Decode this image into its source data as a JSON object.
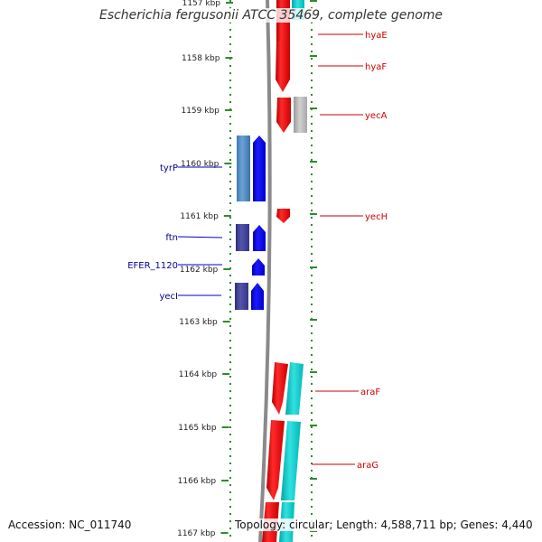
{
  "title": "Escherichia fergusonii ATCC 35469, complete genome",
  "accession": "Accession: NC_011740",
  "topology": "Topology: circular; Length: 4,588,711 bp; Genes: 4,440",
  "ticks": [
    "1157 kbp",
    "1158 kbp",
    "1159 kbp",
    "1160 kbp",
    "1161 kbp",
    "1162 kbp",
    "1163 kbp",
    "1164 kbp",
    "1165 kbp",
    "1166 kbp",
    "1167 kbp"
  ],
  "genes_right": [
    {
      "label": "hyaE",
      "color": "#cc0000"
    },
    {
      "label": "hyaF",
      "color": "#cc0000"
    },
    {
      "label": "yecA",
      "color": "#cc0000"
    },
    {
      "label": "yecH",
      "color": "#cc0000"
    },
    {
      "label": "araF",
      "color": "#cc0000"
    },
    {
      "label": "araG",
      "color": "#cc0000"
    }
  ],
  "genes_left": [
    {
      "label": "tyrP",
      "color": "#000099"
    },
    {
      "label": "ftn",
      "color": "#000099"
    },
    {
      "label": "EFER_1120",
      "color": "#000099"
    },
    {
      "label": "yecI",
      "color": "#000099"
    }
  ],
  "colors": {
    "forward_cds": "#ff0000",
    "reverse_cds": "#0000ff",
    "forward_track2": "#00cccc",
    "reverse_track2": "#4f8fc4",
    "reverse_track2_dark": "#3f3f99",
    "other": "#aaaaaa",
    "tick": "#2e8b2e",
    "backbone": "#777777"
  }
}
